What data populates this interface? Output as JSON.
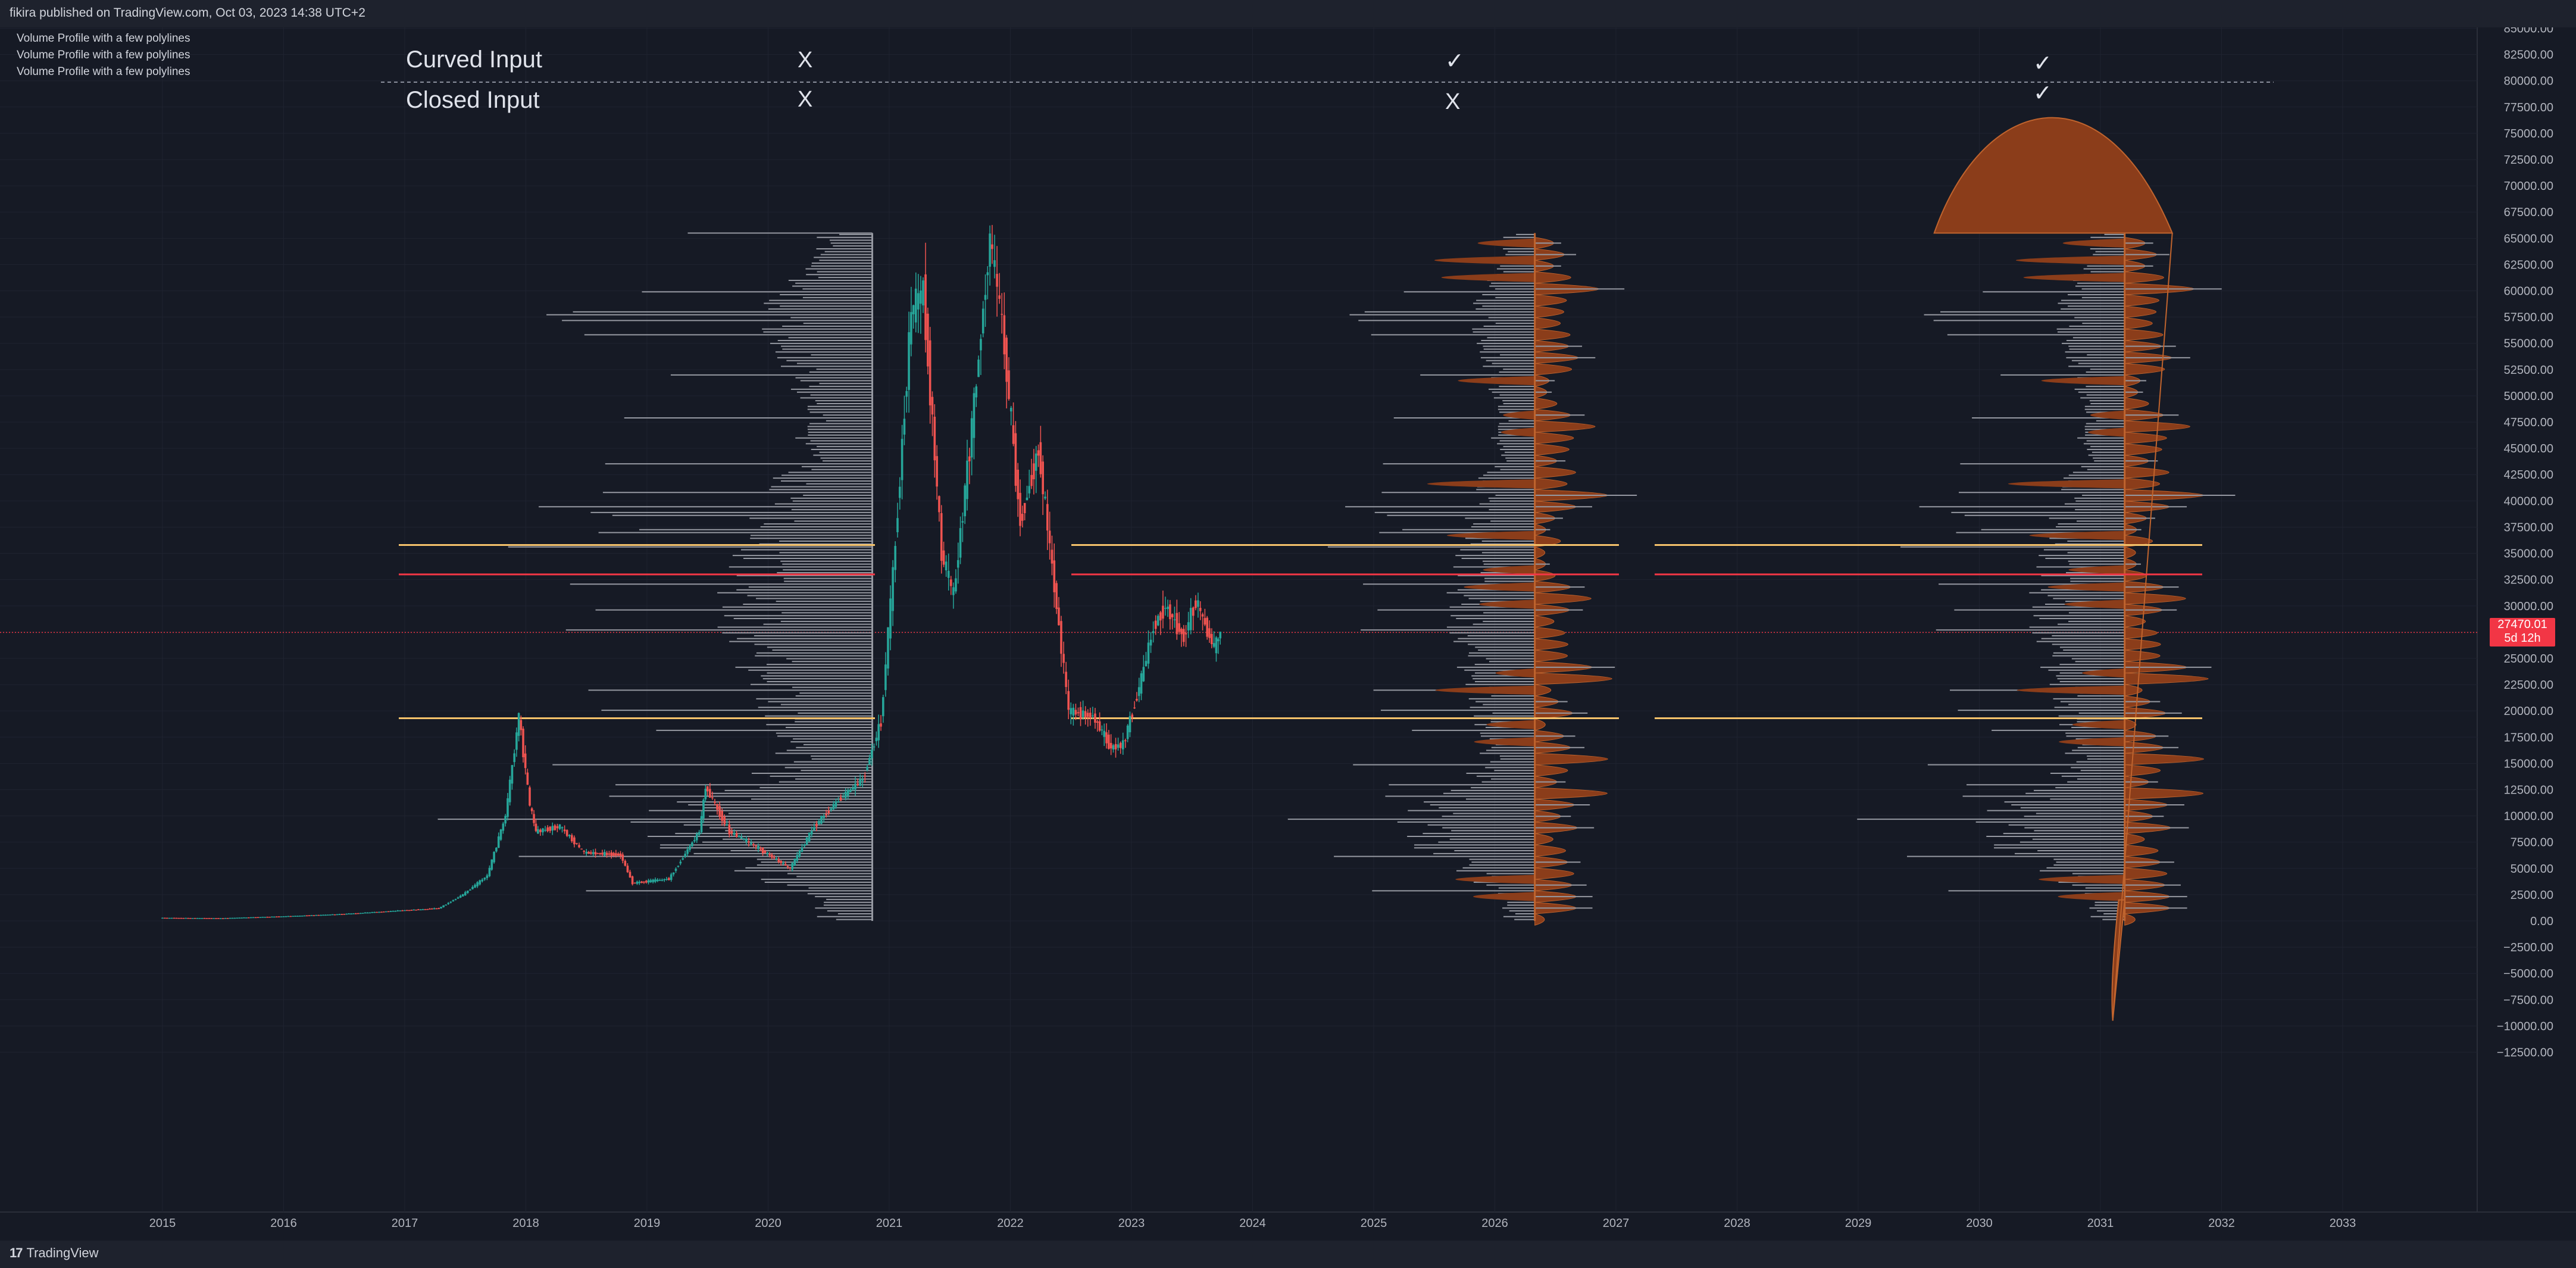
{
  "header": {
    "published_by": "fikira published on TradingView.com, Oct 03, 2023 14:38 UTC+2"
  },
  "footer": {
    "brand": "TradingView",
    "logo_glyph": "17"
  },
  "indicator_legend": [
    "Volume Profile with a few polylines",
    "Volume Profile with a few polylines",
    "Volume Profile with a few polylines"
  ],
  "options_table": {
    "rows": [
      {
        "label": "Curved Input",
        "marks": [
          "X",
          "✓",
          "✓"
        ]
      },
      {
        "label": "Closed Input",
        "marks": [
          "X",
          "X",
          "✓"
        ]
      }
    ]
  },
  "last_price": {
    "value": "27470.01",
    "countdown": "5d 12h"
  },
  "colors": {
    "background": "#161a25",
    "profile_fill": "#8b3d1a",
    "profile_bar": "#9598a1",
    "bull": "#26a69a",
    "bear": "#ef5350",
    "poc_red": "#f23645",
    "level_yellow": "#f5c26b"
  },
  "chart_data": {
    "type": "candlestick-volume-profile",
    "x_axis": {
      "tick_labels": [
        "2015",
        "2016",
        "2017",
        "2018",
        "2019",
        "2020",
        "2021",
        "2022",
        "2023",
        "2024",
        "2025",
        "2026",
        "2027",
        "2028",
        "2029",
        "2030",
        "2031",
        "2032",
        "2033"
      ]
    },
    "y_axis": {
      "ylim": [
        -12500,
        85000
      ],
      "tick_values": [
        85000,
        82500,
        80000,
        77500,
        75000,
        72500,
        70000,
        67500,
        65000,
        62500,
        60000,
        57500,
        55000,
        52500,
        50000,
        47500,
        45000,
        42500,
        40000,
        37500,
        35000,
        32500,
        30000,
        27500,
        25000,
        22500,
        20000,
        17500,
        15000,
        12500,
        10000,
        7500,
        5000,
        2500,
        0,
        -2500,
        -5000,
        -7500,
        -10000,
        -12500
      ],
      "tick_labels": [
        "85000.00",
        "82500.00",
        "80000.00",
        "77500.00",
        "75000.00",
        "72500.00",
        "70000.00",
        "67500.00",
        "65000.00",
        "62500.00",
        "60000.00",
        "57500.00",
        "55000.00",
        "52500.00",
        "50000.00",
        "47500.00",
        "45000.00",
        "42500.00",
        "40000.00",
        "37500.00",
        "35000.00",
        "32500.00",
        "30000.00",
        "27500.00",
        "25000.00",
        "22500.00",
        "20000.00",
        "17500.00",
        "15000.00",
        "12500.00",
        "10000.00",
        "7500.00",
        "5000.00",
        "2500.00",
        "0.00",
        "−2500.00",
        "−5000.00",
        "−7500.00",
        "−10000.00",
        "−12500.00"
      ]
    },
    "price_path": [
      [
        2015.0,
        300
      ],
      [
        2015.5,
        260
      ],
      [
        2016.0,
        430
      ],
      [
        2016.5,
        650
      ],
      [
        2017.0,
        1000
      ],
      [
        2017.3,
        1200
      ],
      [
        2017.5,
        2500
      ],
      [
        2017.7,
        4300
      ],
      [
        2017.85,
        10000
      ],
      [
        2017.96,
        19500
      ],
      [
        2018.05,
        11000
      ],
      [
        2018.1,
        8500
      ],
      [
        2018.3,
        9000
      ],
      [
        2018.5,
        6500
      ],
      [
        2018.8,
        6300
      ],
      [
        2018.9,
        3600
      ],
      [
        2019.2,
        4000
      ],
      [
        2019.45,
        8500
      ],
      [
        2019.5,
        12800
      ],
      [
        2019.7,
        8500
      ],
      [
        2019.9,
        7200
      ],
      [
        2020.2,
        5000
      ],
      [
        2020.4,
        9000
      ],
      [
        2020.6,
        11500
      ],
      [
        2020.8,
        13500
      ],
      [
        2020.95,
        19000
      ],
      [
        2021.05,
        33000
      ],
      [
        2021.2,
        58000
      ],
      [
        2021.3,
        60000
      ],
      [
        2021.45,
        35000
      ],
      [
        2021.55,
        31000
      ],
      [
        2021.7,
        47000
      ],
      [
        2021.85,
        65000
      ],
      [
        2021.95,
        57000
      ],
      [
        2022.1,
        38000
      ],
      [
        2022.25,
        45000
      ],
      [
        2022.4,
        30000
      ],
      [
        2022.5,
        20000
      ],
      [
        2022.7,
        19500
      ],
      [
        2022.85,
        16500
      ],
      [
        2022.95,
        16800
      ],
      [
        2023.1,
        23000
      ],
      [
        2023.2,
        28000
      ],
      [
        2023.3,
        30000
      ],
      [
        2023.45,
        27000
      ],
      [
        2023.55,
        30500
      ],
      [
        2023.7,
        26000
      ],
      [
        2023.75,
        27470
      ]
    ],
    "levels": [
      {
        "name": "level-high",
        "price": 35800,
        "color": "#f5c26b"
      },
      {
        "name": "level-poc",
        "price": 33000,
        "color": "#f23645"
      },
      {
        "name": "level-low",
        "price": 19300,
        "color": "#f5c26b"
      }
    ],
    "profiles": [
      {
        "name": "profile-1",
        "style": "lines",
        "anchor_year": 2020.86,
        "direction": "left",
        "max_width_years": 3.8
      },
      {
        "name": "profile-2",
        "style": "curved-open",
        "anchor_year": 2026.33,
        "direction": "both",
        "max_width_years": 2.4
      },
      {
        "name": "profile-3",
        "style": "curved-closed",
        "anchor_year": 2031.2,
        "direction": "both",
        "max_width_years": 2.6
      }
    ],
    "profile_range": [
      0,
      65500
    ]
  }
}
